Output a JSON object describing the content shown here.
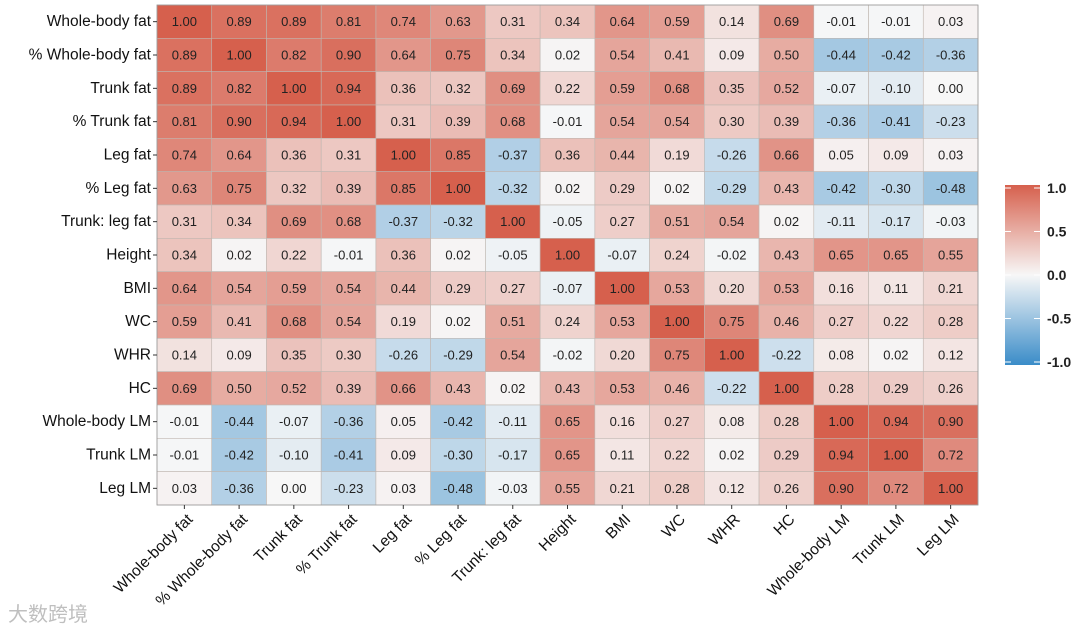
{
  "chart_data": {
    "type": "heatmap",
    "title": "",
    "variables": [
      "Whole-body fat",
      "% Whole-body fat",
      "Trunk fat",
      "% Trunk fat",
      "Leg fat",
      "% Leg fat",
      "Trunk: leg fat",
      "Height",
      "BMI",
      "WC",
      "WHR",
      "HC",
      "Whole-body LM",
      "Trunk LM",
      "Leg LM"
    ],
    "values": [
      [
        1.0,
        0.89,
        0.89,
        0.81,
        0.74,
        0.63,
        0.31,
        0.34,
        0.64,
        0.59,
        0.14,
        0.69,
        -0.01,
        -0.01,
        0.03
      ],
      [
        0.89,
        1.0,
        0.82,
        0.9,
        0.64,
        0.75,
        0.34,
        0.02,
        0.54,
        0.41,
        0.09,
        0.5,
        -0.44,
        -0.42,
        -0.36
      ],
      [
        0.89,
        0.82,
        1.0,
        0.94,
        0.36,
        0.32,
        0.69,
        0.22,
        0.59,
        0.68,
        0.35,
        0.52,
        -0.07,
        -0.1,
        -0.0
      ],
      [
        0.81,
        0.9,
        0.94,
        1.0,
        0.31,
        0.39,
        0.68,
        -0.01,
        0.54,
        0.54,
        0.3,
        0.39,
        -0.36,
        -0.41,
        -0.23
      ],
      [
        0.74,
        0.64,
        0.36,
        0.31,
        1.0,
        0.85,
        -0.37,
        0.36,
        0.44,
        0.19,
        -0.26,
        0.66,
        0.05,
        0.09,
        0.03
      ],
      [
        0.63,
        0.75,
        0.32,
        0.39,
        0.85,
        1.0,
        -0.32,
        0.02,
        0.29,
        0.02,
        -0.29,
        0.43,
        -0.42,
        -0.3,
        -0.48
      ],
      [
        0.31,
        0.34,
        0.69,
        0.68,
        -0.37,
        -0.32,
        1.0,
        -0.05,
        0.27,
        0.51,
        0.54,
        0.02,
        -0.11,
        -0.17,
        -0.03
      ],
      [
        0.34,
        0.02,
        0.22,
        -0.01,
        0.36,
        0.02,
        -0.05,
        1.0,
        -0.07,
        0.24,
        -0.02,
        0.43,
        0.65,
        0.65,
        0.55
      ],
      [
        0.64,
        0.54,
        0.59,
        0.54,
        0.44,
        0.29,
        0.27,
        -0.07,
        1.0,
        0.53,
        0.2,
        0.53,
        0.16,
        0.11,
        0.21
      ],
      [
        0.59,
        0.41,
        0.68,
        0.54,
        0.19,
        0.02,
        0.51,
        0.24,
        0.53,
        1.0,
        0.75,
        0.46,
        0.27,
        0.22,
        0.28
      ],
      [
        0.14,
        0.09,
        0.35,
        0.3,
        -0.26,
        -0.29,
        0.54,
        -0.02,
        0.2,
        0.75,
        1.0,
        -0.22,
        0.08,
        0.02,
        0.12
      ],
      [
        0.69,
        0.5,
        0.52,
        0.39,
        0.66,
        0.43,
        0.02,
        0.43,
        0.53,
        0.46,
        -0.22,
        1.0,
        0.28,
        0.29,
        0.26
      ],
      [
        -0.01,
        -0.44,
        -0.07,
        -0.36,
        0.05,
        -0.42,
        -0.11,
        0.65,
        0.16,
        0.27,
        0.08,
        0.28,
        1.0,
        0.94,
        0.9
      ],
      [
        -0.01,
        -0.42,
        -0.1,
        -0.41,
        0.09,
        -0.3,
        -0.17,
        0.65,
        0.11,
        0.22,
        0.02,
        0.29,
        0.94,
        1.0,
        0.72
      ],
      [
        0.03,
        -0.36,
        -0.0,
        -0.23,
        0.03,
        -0.48,
        -0.03,
        0.55,
        0.21,
        0.28,
        0.12,
        0.26,
        0.9,
        0.72,
        1.0
      ]
    ],
    "color_scale": {
      "range": [
        -1,
        1
      ],
      "ticks": [
        "1.0",
        "0.5",
        "0.0",
        "-0.5",
        "-1.0"
      ],
      "tick_values": [
        1,
        0.5,
        0,
        -0.5,
        -1
      ],
      "low_color": "#3a8cc8",
      "mid_color": "#f7f7f7",
      "high_color": "#d6604d"
    },
    "legend_position": "right"
  },
  "watermark": "大数跨境"
}
